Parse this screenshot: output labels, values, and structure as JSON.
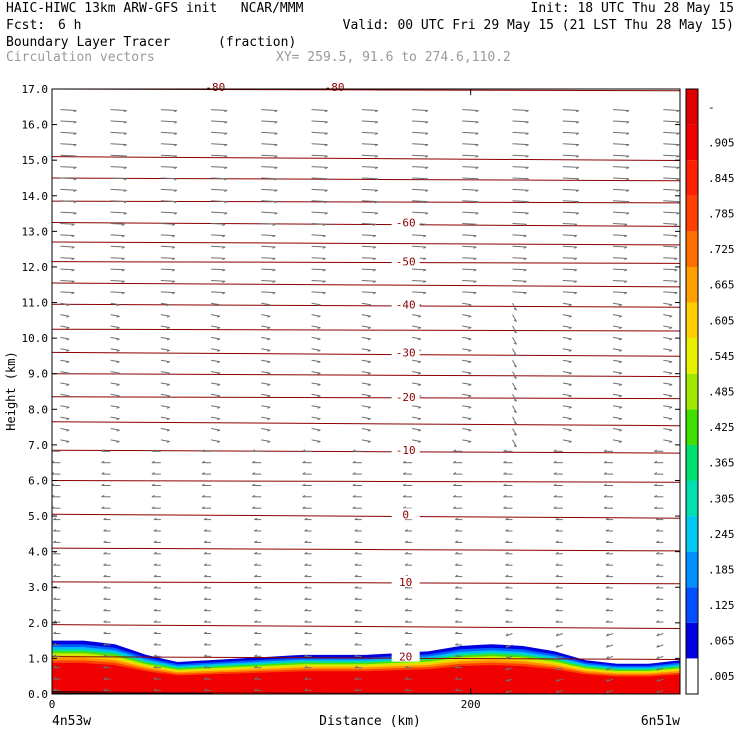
{
  "header": {
    "title_line1": "HAIC-HIWC 13km ARW-GFS init   NCAR/MMM",
    "init": "Init: 18 UTC Thu 28 May 15",
    "fcst_label": "Fcst:",
    "fcst_value": "6 h",
    "valid": "Valid: 00 UTC Fri 29 May 15 (21 LST Thu 28 May 15)",
    "field_name": "Boundary Layer Tracer",
    "field_units": "(fraction)",
    "vectors_label": "Circulation vectors",
    "xy_label": "XY= 259.5, 91.6 to 274.6,110.2"
  },
  "chart_data": {
    "type": "contour",
    "xlabel": "Distance (km)",
    "ylabel": "Height (km)",
    "xlim": [
      0,
      300
    ],
    "ylim": [
      0,
      17
    ],
    "x_ticks": [
      {
        "value": 0,
        "label": "0"
      },
      {
        "value": 200,
        "label": "200"
      }
    ],
    "x_end_labels": {
      "left": "4n53w",
      "right": "6n51w"
    },
    "y_ticks": [
      "0.0",
      "1.0",
      "2.0",
      "3.0",
      "4.0",
      "5.0",
      "6.0",
      "7.0",
      "8.0",
      "9.0",
      "10.0",
      "11.0",
      "12.0",
      "13.0",
      "14.0",
      "15.0",
      "16.0",
      "17.0"
    ],
    "colorbar": {
      "labels": [
        ".005",
        ".065",
        ".125",
        ".185",
        ".245",
        ".305",
        ".365",
        ".425",
        ".485",
        ".545",
        ".605",
        ".665",
        ".725",
        ".785",
        ".845",
        ".905",
        "-"
      ],
      "colors": [
        "#ffffff",
        "#0000e0",
        "#0050ff",
        "#0090ff",
        "#00c8f0",
        "#00e0b0",
        "#00e070",
        "#40e000",
        "#a0e800",
        "#e8f000",
        "#ffd000",
        "#ffa000",
        "#ff7000",
        "#ff4000",
        "#ff2000",
        "#f00000",
        "#e00000"
      ]
    },
    "temperature_contours": {
      "color": "#8b0000",
      "label_x": 200,
      "labels": [
        {
          "value": "20",
          "z": 1.05
        },
        {
          "value": "10",
          "z": 3.15
        },
        {
          "value": "0",
          "z": 5.05
        },
        {
          "value": "-10",
          "z": 6.85
        },
        {
          "value": "-20",
          "z": 8.35
        },
        {
          "value": "-30",
          "z": 9.6
        },
        {
          "value": "-40",
          "z": 10.95
        },
        {
          "value": "-50",
          "z": 12.15
        },
        {
          "value": "-60",
          "z": 13.25
        }
      ],
      "top_labels": [
        "-80",
        "-80"
      ],
      "levels_z": [
        0.05,
        1.05,
        1.95,
        3.15,
        4.1,
        5.05,
        6.0,
        6.85,
        7.65,
        8.35,
        9.0,
        9.6,
        10.25,
        10.95,
        11.55,
        12.15,
        12.7,
        13.25,
        13.85,
        14.5,
        15.1,
        17.0
      ]
    },
    "tracer_top_z": [
      1.5,
      1.5,
      1.4,
      1.1,
      0.9,
      0.95,
      1.0,
      1.05,
      1.1,
      1.1,
      1.1,
      1.15,
      1.2,
      1.35,
      1.4,
      1.35,
      1.2,
      0.95,
      0.85,
      0.85,
      0.95
    ]
  }
}
